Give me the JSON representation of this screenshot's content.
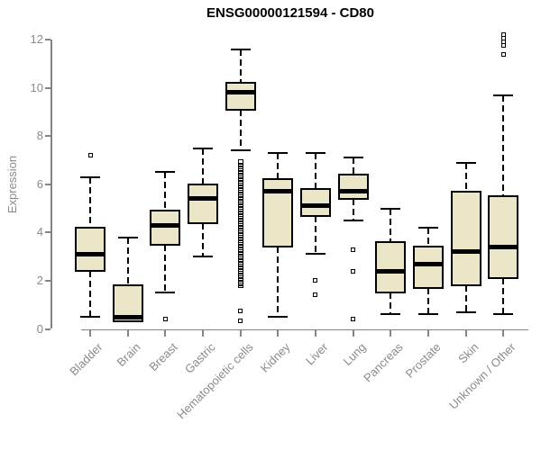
{
  "title": "ENSG00000121594 - CD80",
  "ylabel": "Expression",
  "chart_data": {
    "type": "boxplot",
    "title": "ENSG00000121594 - CD80",
    "xlabel": "",
    "ylabel": "Expression",
    "ylim": [
      0,
      12
    ],
    "yticks": [
      0,
      2,
      4,
      6,
      8,
      10,
      12
    ],
    "grid": false,
    "legend": "none",
    "colors": {
      "box_fill": "#ECE6C8",
      "box_border": "#000000",
      "whisker": "#000000",
      "axis": "#848484",
      "tick_label": "#8a8a8a",
      "title_color": "#000000",
      "background": "#ffffff"
    },
    "categories": [
      {
        "label": "Bladder",
        "whisker_low": 0.5,
        "q1": 2.4,
        "median": 3.1,
        "q3": 4.2,
        "whisker_high": 6.3,
        "outliers": [
          7.2
        ]
      },
      {
        "label": "Brain",
        "whisker_low": 0.3,
        "q1": 0.3,
        "median": 0.5,
        "q3": 1.8,
        "whisker_high": 3.8,
        "outliers": []
      },
      {
        "label": "Breast",
        "whisker_low": 1.5,
        "q1": 3.5,
        "median": 4.3,
        "q3": 4.9,
        "whisker_high": 6.5,
        "outliers": [
          0.4
        ]
      },
      {
        "label": "Gastric",
        "whisker_low": 3.0,
        "q1": 4.4,
        "median": 5.4,
        "q3": 6.0,
        "whisker_high": 7.5,
        "outliers": []
      },
      {
        "label": "Hematopoietic cells",
        "whisker_low": 7.4,
        "q1": 9.1,
        "median": 9.8,
        "q3": 10.2,
        "whisker_high": 11.6,
        "outliers": [
          0.75,
          0.35
        ],
        "outlier_dense_range": [
          1.8,
          7.0
        ]
      },
      {
        "label": "Kidney",
        "whisker_low": 0.5,
        "q1": 3.4,
        "median": 5.7,
        "q3": 6.2,
        "whisker_high": 7.3,
        "outliers": []
      },
      {
        "label": "Liver",
        "whisker_low": 3.1,
        "q1": 4.7,
        "median": 5.1,
        "q3": 5.8,
        "whisker_high": 7.3,
        "outliers": [
          2.0,
          1.4
        ]
      },
      {
        "label": "Lung",
        "whisker_low": 4.5,
        "q1": 5.4,
        "median": 5.7,
        "q3": 6.4,
        "whisker_high": 7.1,
        "outliers": [
          3.3,
          2.4,
          0.4
        ]
      },
      {
        "label": "Pancreas",
        "whisker_low": 0.6,
        "q1": 1.5,
        "median": 2.4,
        "q3": 3.6,
        "whisker_high": 5.0,
        "outliers": []
      },
      {
        "label": "Prostate",
        "whisker_low": 0.6,
        "q1": 1.7,
        "median": 2.7,
        "q3": 3.4,
        "whisker_high": 4.2,
        "outliers": []
      },
      {
        "label": "Skin",
        "whisker_low": 0.7,
        "q1": 1.8,
        "median": 3.2,
        "q3": 5.7,
        "whisker_high": 6.9,
        "outliers": []
      },
      {
        "label": "Unknown / Other",
        "whisker_low": 0.6,
        "q1": 2.1,
        "median": 3.4,
        "q3": 5.5,
        "whisker_high": 9.7,
        "outliers": [
          12.2,
          12.05,
          11.9,
          11.75,
          11.4
        ]
      }
    ]
  }
}
